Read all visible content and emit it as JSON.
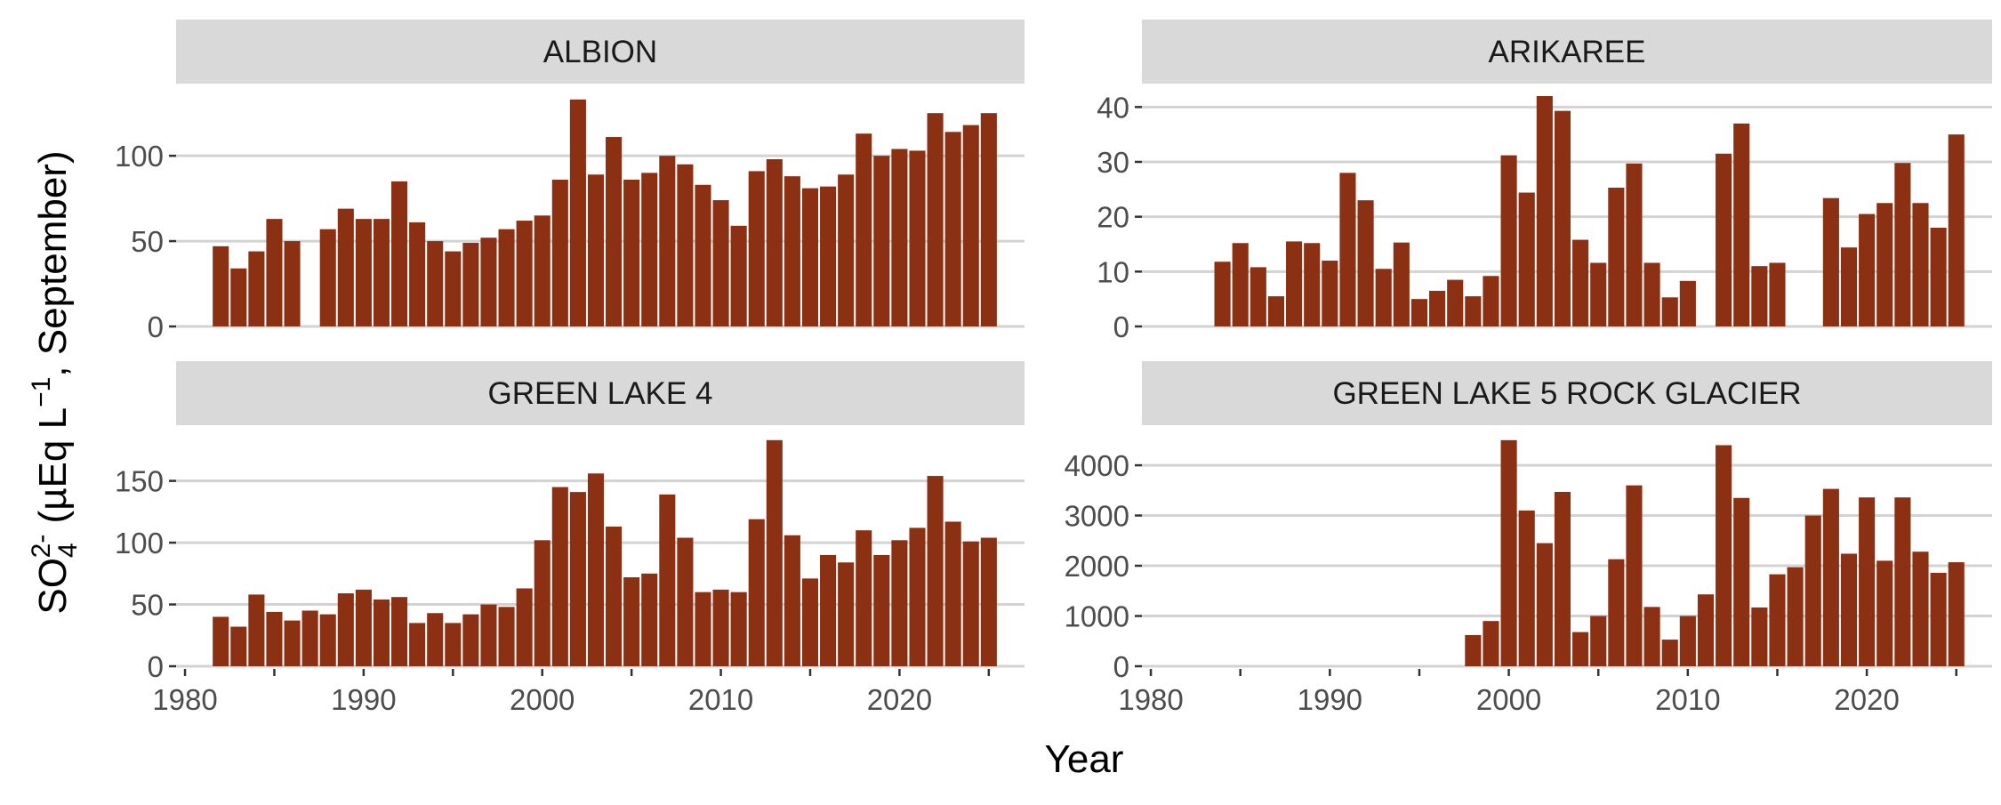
{
  "colors": {
    "bar": "#8b3012",
    "strip_bg": "#d9d9d9",
    "grid": "#d3d3d3",
    "background": "#ffffff"
  },
  "axes": {
    "xlabel": "Year",
    "ylabel_parts": {
      "chem": "SO",
      "sub": "4",
      "sup": "2-",
      "unit": " (µEq L",
      "unit_sup": "−1",
      "tail": ", September)"
    }
  },
  "chart_data": [
    {
      "type": "bar",
      "title": "ALBION",
      "ylim": [
        0,
        135
      ],
      "yticks": [
        0,
        50,
        100
      ],
      "xlim": [
        1980,
        2026
      ],
      "xticks": [
        1980,
        1990,
        2000,
        2010,
        2020
      ],
      "grid": true,
      "x": [
        1982,
        1983,
        1984,
        1985,
        1986,
        1988,
        1989,
        1990,
        1991,
        1992,
        1993,
        1994,
        1995,
        1996,
        1997,
        1998,
        1999,
        2000,
        2001,
        2002,
        2003,
        2004,
        2005,
        2006,
        2007,
        2008,
        2009,
        2010,
        2011,
        2012,
        2013,
        2014,
        2015,
        2016,
        2017,
        2018,
        2019,
        2020,
        2021,
        2022,
        2023,
        2024,
        2025
      ],
      "values": [
        47,
        34,
        44,
        63,
        50,
        57,
        69,
        63,
        63,
        85,
        61,
        50,
        44,
        49,
        52,
        57,
        62,
        65,
        86,
        133,
        89,
        111,
        86,
        90,
        100,
        95,
        83,
        74,
        59,
        91,
        98,
        88,
        81,
        82,
        89,
        113,
        100,
        104,
        103,
        125,
        114,
        118,
        125
      ]
    },
    {
      "type": "bar",
      "title": "ARIKAREE",
      "ylim": [
        0,
        42
      ],
      "yticks": [
        0,
        10,
        20,
        30,
        40
      ],
      "xlim": [
        1980,
        2026
      ],
      "xticks": [
        1980,
        1990,
        2000,
        2010,
        2020
      ],
      "grid": true,
      "x": [
        1984,
        1985,
        1986,
        1987,
        1988,
        1989,
        1990,
        1991,
        1992,
        1993,
        1994,
        1995,
        1996,
        1997,
        1998,
        1999,
        2000,
        2001,
        2002,
        2003,
        2004,
        2005,
        2006,
        2007,
        2008,
        2009,
        2010,
        2012,
        2013,
        2014,
        2015,
        2018,
        2019,
        2020,
        2021,
        2022,
        2023,
        2024,
        2025
      ],
      "values": [
        11.8,
        15.2,
        10.8,
        5.5,
        15.5,
        15.2,
        12,
        28,
        23,
        10.5,
        15.3,
        5,
        6.5,
        8.5,
        5.5,
        9.2,
        31.2,
        24.4,
        42,
        39.3,
        15.8,
        11.6,
        25.3,
        29.7,
        11.6,
        5.3,
        8.3,
        31.5,
        37,
        11,
        11.6,
        23.4,
        14.4,
        20.5,
        22.5,
        29.8,
        22.5,
        18,
        35
      ]
    },
    {
      "type": "bar",
      "title": "GREEN LAKE 4",
      "ylim": [
        0,
        185
      ],
      "yticks": [
        0,
        50,
        100,
        150
      ],
      "xlim": [
        1980,
        2026
      ],
      "xticks": [
        1980,
        1990,
        2000,
        2010,
        2020
      ],
      "grid": true,
      "x": [
        1982,
        1983,
        1984,
        1985,
        1986,
        1987,
        1988,
        1989,
        1990,
        1991,
        1992,
        1993,
        1994,
        1995,
        1996,
        1997,
        1998,
        1999,
        2000,
        2001,
        2002,
        2003,
        2004,
        2005,
        2006,
        2007,
        2008,
        2009,
        2010,
        2011,
        2012,
        2013,
        2014,
        2015,
        2016,
        2017,
        2018,
        2019,
        2020,
        2021,
        2022,
        2023,
        2024,
        2025
      ],
      "values": [
        40,
        32,
        58,
        44,
        37,
        45,
        42,
        59,
        62,
        54,
        56,
        35,
        43,
        35,
        42,
        50,
        48,
        63,
        102,
        145,
        141,
        156,
        113,
        72,
        75,
        139,
        104,
        60,
        62,
        60,
        119,
        183,
        106,
        71,
        90,
        84,
        110,
        90,
        102,
        112,
        154,
        117,
        101,
        104
      ]
    },
    {
      "type": "bar",
      "title": "GREEN LAKE 5 ROCK GLACIER",
      "ylim": [
        0,
        4550
      ],
      "yticks": [
        0,
        1000,
        2000,
        3000,
        4000
      ],
      "xlim": [
        1980,
        2026
      ],
      "xticks": [
        1980,
        1990,
        2000,
        2010,
        2020
      ],
      "grid": true,
      "x": [
        1998,
        1999,
        2000,
        2001,
        2002,
        2003,
        2004,
        2005,
        2006,
        2007,
        2008,
        2009,
        2010,
        2011,
        2012,
        2013,
        2014,
        2015,
        2016,
        2017,
        2018,
        2019,
        2020,
        2021,
        2022,
        2023,
        2024,
        2025
      ],
      "values": [
        620,
        900,
        4500,
        3100,
        2450,
        3470,
        680,
        1000,
        2130,
        3600,
        1180,
        530,
        1000,
        1430,
        4400,
        3350,
        1170,
        1830,
        1970,
        3000,
        3530,
        2240,
        3360,
        2100,
        3360,
        2280,
        1860,
        2070
      ]
    }
  ]
}
